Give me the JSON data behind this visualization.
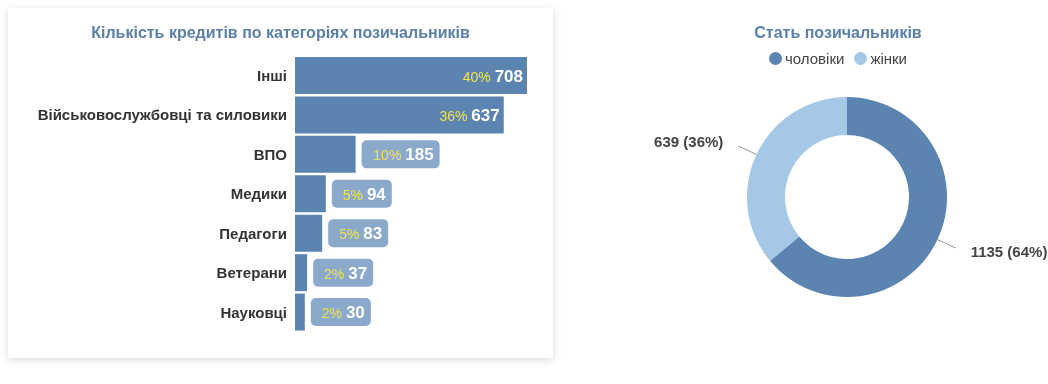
{
  "chart_data": [
    {
      "type": "bar",
      "orientation": "horizontal",
      "title": "Кількість кредитів по категоріях позичальників",
      "categories": [
        "Інші",
        "Військовослужбовці та силовики",
        "ВПО",
        "Медики",
        "Педагоги",
        "Ветерани",
        "Науковці"
      ],
      "values": [
        708,
        637,
        185,
        94,
        83,
        37,
        30
      ],
      "color": "#5b84b1",
      "value_labels": [
        "40% 708",
        "36% 637",
        "10% 185",
        "5% 94",
        "5% 83",
        "2% 37",
        "2% 30"
      ]
    },
    {
      "type": "donut",
      "title": "Стать позичальників",
      "categories": [
        "чоловіки",
        "жінки"
      ],
      "values": [
        1135,
        639
      ],
      "colors": [
        "#5b84b1",
        "#a4c8e6"
      ],
      "value_labels": [
        "1135 (64%)",
        "639 (36%)"
      ],
      "legend": "top"
    }
  ]
}
